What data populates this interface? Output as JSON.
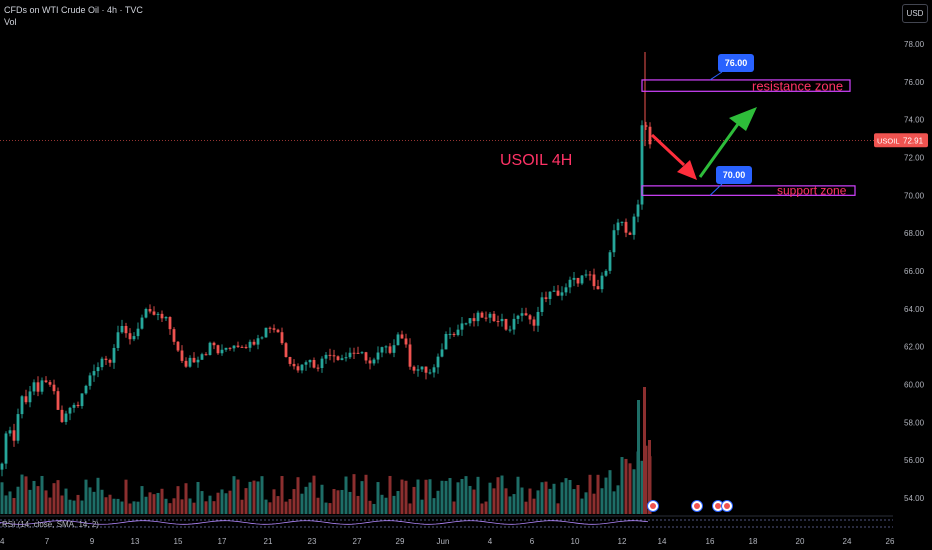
{
  "header": {
    "symbol_line": "CFDs on WTI Crude Oil · 4h · TVC",
    "volume_label": "Vol"
  },
  "currency_button": "USD",
  "rsi_label": "RSI (14, close, SMA, 14, 2)",
  "annotations": {
    "chart_title": "USOIL 4H",
    "resistance_label": "resistance zone",
    "support_label": "support zone",
    "target_high": "76.00",
    "target_low": "70.00",
    "last_price_symbol": "USOIL",
    "last_price": "72.91"
  },
  "colors": {
    "up": "#26a69a",
    "down": "#ef5350",
    "zone": "#d243ff",
    "zone_text": "#ff3366",
    "callout": "#2962ff",
    "arrow_down": "#ff2e3c",
    "arrow_up": "#2ebd3a"
  },
  "chart_data": {
    "type": "candlestick",
    "y_ticks": [
      "78.00",
      "76.00",
      "74.00",
      "72.00",
      "70.00",
      "68.00",
      "66.00",
      "64.00",
      "62.00",
      "60.00",
      "58.00",
      "56.00",
      "54.00"
    ],
    "ylim": [
      53,
      79
    ],
    "x_ticks": [
      "4",
      "7",
      "9",
      "13",
      "15",
      "17",
      "21",
      "23",
      "27",
      "29",
      "Jun",
      "4",
      "6",
      "10",
      "12",
      "14",
      "16",
      "18",
      "20",
      "24",
      "26"
    ],
    "resistance_zone": [
      75.5,
      76.1
    ],
    "support_zone": [
      70.0,
      70.5
    ],
    "last_price": 72.91,
    "close_path": [
      [
        0,
        55.5
      ],
      [
        6,
        57.2
      ],
      [
        10,
        57.8
      ],
      [
        14,
        57.0
      ],
      [
        18,
        58.5
      ],
      [
        22,
        59.4
      ],
      [
        26,
        59.0
      ],
      [
        30,
        59.8
      ],
      [
        34,
        60.2
      ],
      [
        38,
        59.6
      ],
      [
        40,
        60.1
      ],
      [
        45,
        59.8
      ],
      [
        48,
        60.3
      ],
      [
        52,
        60.0
      ],
      [
        56,
        58.8
      ],
      [
        60,
        58.2
      ],
      [
        64,
        57.9
      ],
      [
        68,
        58.6
      ],
      [
        72,
        59.0
      ],
      [
        76,
        58.7
      ],
      [
        80,
        59.2
      ],
      [
        84,
        59.6
      ],
      [
        88,
        60.2
      ],
      [
        92,
        60.6
      ],
      [
        96,
        60.9
      ],
      [
        100,
        61.3
      ],
      [
        104,
        61.6
      ],
      [
        108,
        61.0
      ],
      [
        112,
        61.8
      ],
      [
        116,
        62.4
      ],
      [
        120,
        63.2
      ],
      [
        124,
        62.5
      ],
      [
        128,
        62.7
      ],
      [
        132,
        62.3
      ],
      [
        136,
        62.9
      ],
      [
        140,
        63.3
      ],
      [
        144,
        63.7
      ],
      [
        148,
        63.8
      ],
      [
        152,
        63.5
      ],
      [
        156,
        63.9
      ],
      [
        160,
        63.3
      ],
      [
        164,
        63.6
      ],
      [
        168,
        63.1
      ],
      [
        172,
        62.8
      ],
      [
        176,
        62.0
      ],
      [
        180,
        61.4
      ],
      [
        184,
        60.8
      ],
      [
        188,
        61.3
      ],
      [
        192,
        61.5
      ],
      [
        196,
        61.2
      ],
      [
        200,
        61.8
      ],
      [
        204,
        61.6
      ],
      [
        208,
        61.9
      ],
      [
        212,
        62.2
      ],
      [
        216,
        61.9
      ],
      [
        220,
        61.5
      ],
      [
        224,
        61.8
      ],
      [
        228,
        62.1
      ],
      [
        232,
        62.0
      ],
      [
        236,
        62.3
      ],
      [
        240,
        62.0
      ],
      [
        244,
        62.3
      ],
      [
        248,
        62.0
      ],
      [
        252,
        62.2
      ],
      [
        256,
        62.5
      ],
      [
        260,
        62.8
      ],
      [
        264,
        62.6
      ],
      [
        268,
        63.3
      ],
      [
        272,
        62.9
      ],
      [
        276,
        63.0
      ],
      [
        280,
        62.7
      ],
      [
        284,
        61.8
      ],
      [
        288,
        61.1
      ],
      [
        292,
        61.4
      ],
      [
        296,
        61.0
      ],
      [
        300,
        60.8
      ],
      [
        304,
        61.2
      ],
      [
        308,
        61.5
      ],
      [
        312,
        60.9
      ],
      [
        316,
        61.2
      ],
      [
        320,
        61.0
      ],
      [
        324,
        61.5
      ],
      [
        328,
        61.7
      ],
      [
        332,
        61.8
      ],
      [
        336,
        61.4
      ],
      [
        340,
        61.6
      ],
      [
        344,
        61.3
      ],
      [
        348,
        61.6
      ],
      [
        352,
        61.9
      ],
      [
        356,
        61.5
      ],
      [
        360,
        61.4
      ],
      [
        364,
        61.7
      ],
      [
        368,
        61.2
      ],
      [
        372,
        61.0
      ],
      [
        376,
        61.4
      ],
      [
        380,
        61.7
      ],
      [
        384,
        62.0
      ],
      [
        388,
        61.6
      ],
      [
        392,
        62.1
      ],
      [
        396,
        62.5
      ],
      [
        400,
        62.8
      ],
      [
        404,
        62.3
      ],
      [
        408,
        61.5
      ],
      [
        412,
        60.8
      ],
      [
        416,
        61.0
      ],
      [
        420,
        60.6
      ],
      [
        424,
        60.9
      ],
      [
        428,
        60.5
      ],
      [
        432,
        60.7
      ],
      [
        436,
        60.9
      ],
      [
        440,
        61.6
      ],
      [
        444,
        62.4
      ],
      [
        448,
        62.8
      ],
      [
        452,
        63.0
      ],
      [
        456,
        62.7
      ],
      [
        460,
        63.1
      ],
      [
        464,
        63.4
      ],
      [
        468,
        63.1
      ],
      [
        472,
        63.5
      ],
      [
        476,
        63.3
      ],
      [
        480,
        63.8
      ],
      [
        484,
        63.5
      ],
      [
        488,
        63.3
      ],
      [
        492,
        63.7
      ],
      [
        496,
        63.4
      ],
      [
        500,
        63.8
      ],
      [
        504,
        62.9
      ],
      [
        508,
        63.1
      ],
      [
        512,
        63.0
      ],
      [
        516,
        63.5
      ],
      [
        520,
        64.0
      ],
      [
        524,
        63.6
      ],
      [
        528,
        63.4
      ],
      [
        532,
        63.2
      ],
      [
        536,
        63.5
      ],
      [
        540,
        64.1
      ],
      [
        544,
        64.8
      ],
      [
        548,
        64.6
      ],
      [
        552,
        64.9
      ],
      [
        556,
        64.7
      ],
      [
        560,
        65.0
      ],
      [
        564,
        64.8
      ],
      [
        568,
        65.2
      ],
      [
        572,
        65.6
      ],
      [
        576,
        65.3
      ],
      [
        580,
        65.8
      ],
      [
        584,
        65.5
      ],
      [
        588,
        65.8
      ],
      [
        592,
        65.4
      ],
      [
        596,
        64.9
      ],
      [
        600,
        65.2
      ],
      [
        604,
        65.9
      ],
      [
        608,
        66.6
      ],
      [
        612,
        67.8
      ],
      [
        616,
        68.3
      ],
      [
        620,
        68.8
      ],
      [
        624,
        68.0
      ],
      [
        628,
        67.6
      ],
      [
        632,
        68.2
      ],
      [
        634,
        69.0
      ],
      [
        638,
        69.6
      ],
      [
        640,
        72.9
      ],
      [
        642,
        73.5
      ],
      [
        644,
        73.2
      ],
      [
        646,
        73.6
      ],
      [
        648,
        73.1
      ],
      [
        650,
        72.91
      ]
    ]
  }
}
